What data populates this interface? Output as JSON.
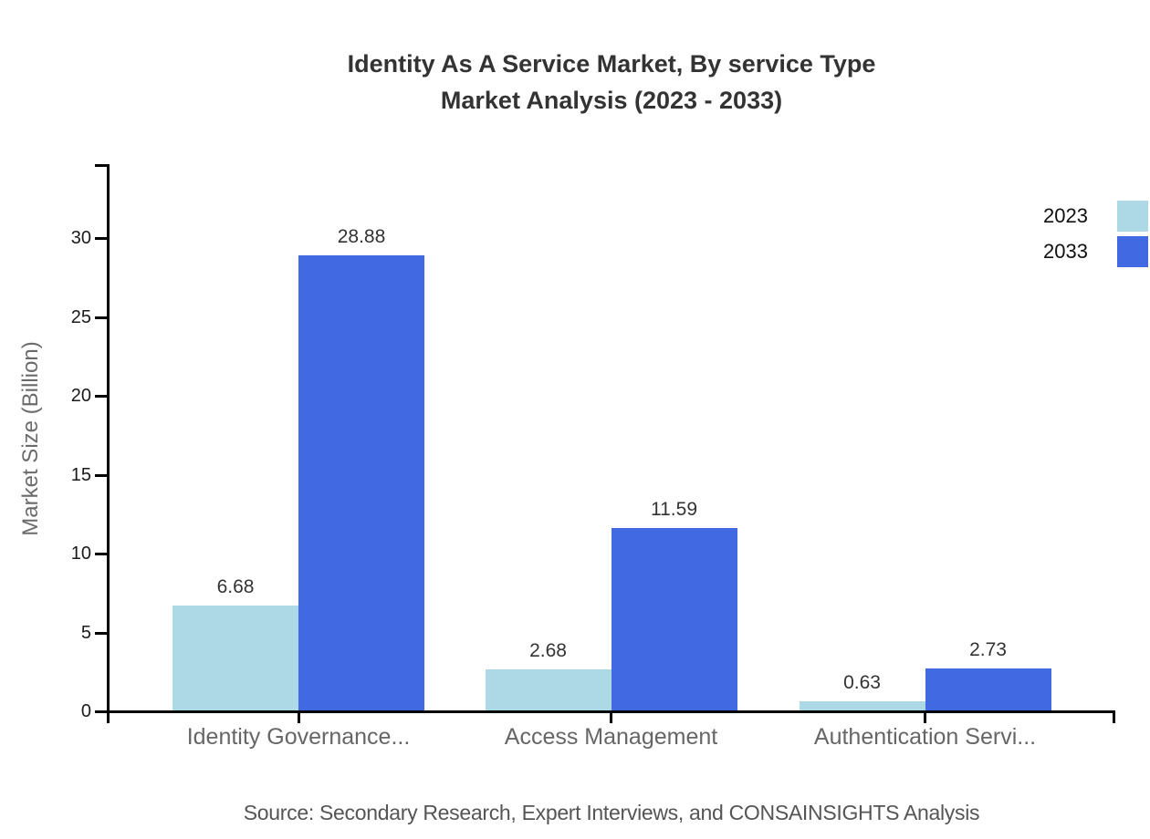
{
  "title": {
    "line1": "Identity As A Service Market, By service Type",
    "line2": "Market Analysis (2023 - 2033)"
  },
  "source": "Source: Secondary Research, Expert Interviews, and CONSAINSIGHTS Analysis",
  "chart_data": {
    "type": "bar",
    "title": "Identity As A Service Market, By service Type Market Analysis (2023 - 2033)",
    "categories": [
      "Identity Governance...",
      "Access Management",
      "Authentication Servi..."
    ],
    "series": [
      {
        "name": "2023",
        "color": "#ADD8E6",
        "values": [
          6.68,
          2.68,
          0.63
        ]
      },
      {
        "name": "2033",
        "color": "#4169E1",
        "values": [
          28.88,
          11.59,
          2.73
        ]
      }
    ],
    "value_labels": [
      "6.68",
      "28.88",
      "2.68",
      "11.59",
      "0.63",
      "2.73"
    ],
    "xlabel": "",
    "ylabel": "Market Size (Billion)",
    "yticks": [
      0,
      5,
      10,
      15,
      20,
      25,
      30
    ],
    "ylim": [
      0,
      34.7
    ],
    "grid": false,
    "legend_position": "top-right",
    "axis_color": "#000000"
  }
}
